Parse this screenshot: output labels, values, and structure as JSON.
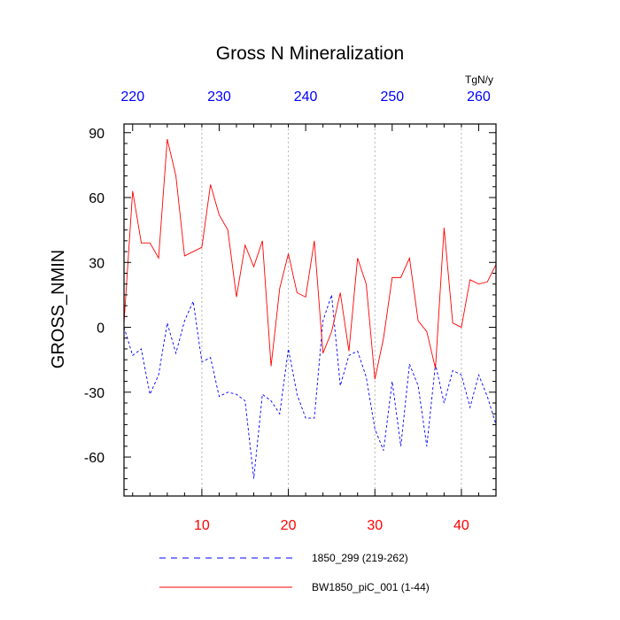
{
  "chart_data": {
    "type": "line",
    "title": "Gross N Mineralization",
    "ylabel": "GROSS_NMIN",
    "units": "TgN/y",
    "xlim": [
      1,
      44
    ],
    "ylim": [
      -78,
      94
    ],
    "y_ticks": [
      90,
      60,
      30,
      0,
      -30,
      -60
    ],
    "y_tick_labels": [
      "90",
      "60",
      "30",
      "0",
      "-30",
      "-60"
    ],
    "bottom_ticks": [
      10,
      20,
      30,
      40
    ],
    "bottom_tick_labels": [
      "10",
      "20",
      "30",
      "40"
    ],
    "bottom_tick_color": "#ff0000",
    "top_ticks": [
      220,
      230,
      240,
      250,
      260
    ],
    "top_tick_labels": [
      "220",
      "230",
      "240",
      "250",
      "260"
    ],
    "top_tick_color": "#0000ff",
    "top_offset": 218,
    "gridlines_x": [
      10,
      20,
      30,
      40
    ],
    "series": [
      {
        "name": "1850_299 (219-262)",
        "color": "#0000ff",
        "style": "dashed",
        "x": [
          1,
          2,
          3,
          4,
          5,
          6,
          7,
          8,
          9,
          10,
          11,
          12,
          13,
          14,
          15,
          16,
          17,
          18,
          19,
          20,
          21,
          22,
          23,
          24,
          25,
          26,
          27,
          28,
          29,
          30,
          31,
          32,
          33,
          34,
          35,
          36,
          37,
          38,
          39,
          40,
          41,
          42,
          43,
          44
        ],
        "values": [
          0,
          -13,
          -10,
          -31,
          -22,
          2,
          -12,
          3,
          12,
          -16,
          -14,
          -32,
          -30,
          -31,
          -34,
          -70,
          -31,
          -34,
          -40,
          -10,
          -31,
          -42,
          -42,
          3,
          15,
          -27,
          -13,
          -11,
          -23,
          -47,
          -57,
          -25,
          -55,
          -17,
          -27,
          -55,
          -17,
          -35,
          -20,
          -22,
          -37,
          -22,
          -32,
          -45
        ]
      },
      {
        "name": "BW1850_piC_001 (1-44)",
        "color": "#ff0000",
        "style": "solid",
        "x": [
          1,
          2,
          3,
          4,
          5,
          6,
          7,
          8,
          9,
          10,
          11,
          12,
          13,
          14,
          15,
          16,
          17,
          18,
          19,
          20,
          21,
          22,
          23,
          24,
          25,
          26,
          27,
          28,
          29,
          30,
          31,
          32,
          33,
          34,
          35,
          36,
          37,
          38,
          39,
          40,
          41,
          42,
          43,
          44
        ],
        "values": [
          2,
          63,
          39,
          39,
          32,
          87,
          70,
          33,
          35,
          37,
          66,
          52,
          45,
          14,
          38,
          28,
          40,
          -18,
          18,
          34,
          16,
          14,
          40,
          -12,
          -2,
          16,
          -11,
          32,
          20,
          -24,
          -5,
          23,
          23,
          32,
          3,
          -2,
          -19,
          46,
          2,
          0,
          22,
          20,
          21,
          29
        ]
      }
    ]
  }
}
